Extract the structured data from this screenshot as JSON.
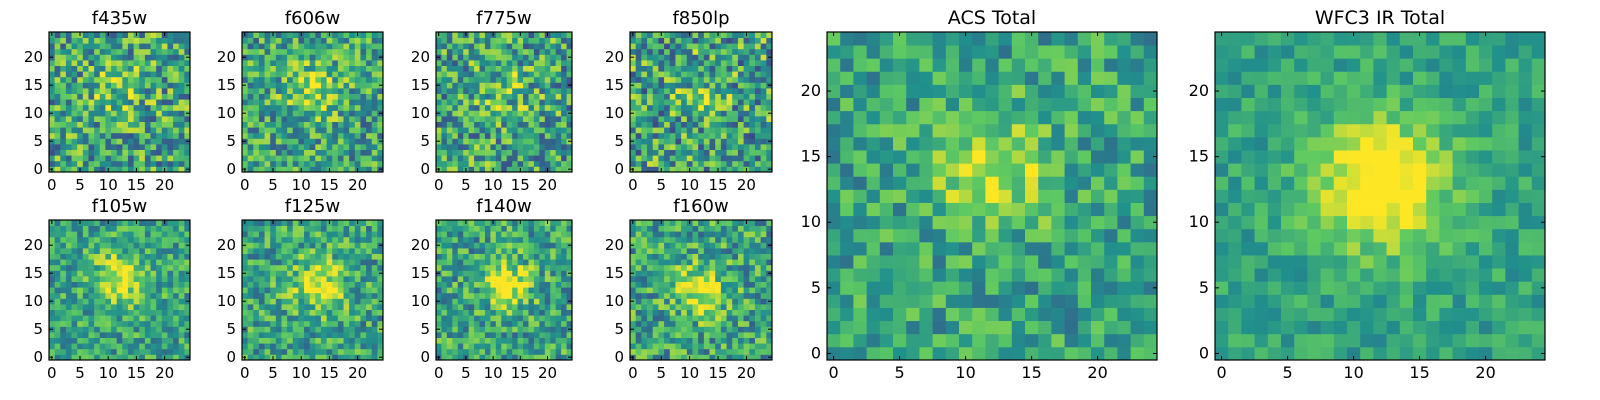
{
  "figure": {
    "colormap": [
      "#440154",
      "#3b528b",
      "#21918c",
      "#5ec962",
      "#fde725"
    ]
  },
  "chart_data": [
    {
      "type": "heatmap",
      "title": "f435w",
      "grid_size": 25,
      "xticks": [
        "0",
        "5",
        "10",
        "15",
        "20"
      ],
      "yticks": [
        "0",
        "5",
        "10",
        "15",
        "20"
      ],
      "xlim": [
        -0.5,
        24.5
      ],
      "ylim": [
        -0.5,
        24.5
      ],
      "peak": [
        12,
        14
      ],
      "peak_strength": 0.18,
      "spread": 3.5,
      "noise": 0.34,
      "grid": false
    },
    {
      "type": "heatmap",
      "title": "f606w",
      "grid_size": 25,
      "xticks": [
        "0",
        "5",
        "10",
        "15",
        "20"
      ],
      "yticks": [
        "0",
        "5",
        "10",
        "15",
        "20"
      ],
      "xlim": [
        -0.5,
        24.5
      ],
      "ylim": [
        -0.5,
        24.5
      ],
      "peak": [
        12,
        14
      ],
      "peak_strength": 0.3,
      "spread": 3.5,
      "noise": 0.3,
      "grid": false
    },
    {
      "type": "heatmap",
      "title": "f775w",
      "grid_size": 25,
      "xticks": [
        "0",
        "5",
        "10",
        "15",
        "20"
      ],
      "yticks": [
        "0",
        "5",
        "10",
        "15",
        "20"
      ],
      "xlim": [
        -0.5,
        24.5
      ],
      "ylim": [
        -0.5,
        24.5
      ],
      "peak": [
        12,
        14
      ],
      "peak_strength": 0.15,
      "spread": 3.5,
      "noise": 0.34,
      "grid": false
    },
    {
      "type": "heatmap",
      "title": "f850lp",
      "grid_size": 25,
      "xticks": [
        "0",
        "5",
        "10",
        "15",
        "20"
      ],
      "yticks": [
        "0",
        "5",
        "10",
        "15",
        "20"
      ],
      "xlim": [
        -0.5,
        24.5
      ],
      "ylim": [
        -0.5,
        24.5
      ],
      "peak": [
        12,
        14
      ],
      "peak_strength": 0.12,
      "spread": 3.5,
      "noise": 0.36,
      "grid": false
    },
    {
      "type": "heatmap",
      "title": "f105w",
      "grid_size": 25,
      "xticks": [
        "0",
        "5",
        "10",
        "15",
        "20"
      ],
      "yticks": [
        "0",
        "5",
        "10",
        "15",
        "20"
      ],
      "xlim": [
        -0.5,
        24.5
      ],
      "ylim": [
        -0.5,
        24.5
      ],
      "peak": [
        12,
        14
      ],
      "peak_strength": 0.4,
      "spread": 3.2,
      "noise": 0.24,
      "grid": false
    },
    {
      "type": "heatmap",
      "title": "f125w",
      "grid_size": 25,
      "xticks": [
        "0",
        "5",
        "10",
        "15",
        "20"
      ],
      "yticks": [
        "0",
        "5",
        "10",
        "15",
        "20"
      ],
      "xlim": [
        -0.5,
        24.5
      ],
      "ylim": [
        -0.5,
        24.5
      ],
      "peak": [
        13,
        13
      ],
      "peak_strength": 0.35,
      "spread": 3.4,
      "noise": 0.26,
      "grid": false
    },
    {
      "type": "heatmap",
      "title": "f140w",
      "grid_size": 25,
      "xticks": [
        "0",
        "5",
        "10",
        "15",
        "20"
      ],
      "yticks": [
        "0",
        "5",
        "10",
        "15",
        "20"
      ],
      "xlim": [
        -0.5,
        24.5
      ],
      "ylim": [
        -0.5,
        24.5
      ],
      "peak": [
        13,
        13
      ],
      "peak_strength": 0.4,
      "spread": 3.0,
      "noise": 0.27,
      "grid": false
    },
    {
      "type": "heatmap",
      "title": "f160w",
      "grid_size": 25,
      "xticks": [
        "0",
        "5",
        "10",
        "15",
        "20"
      ],
      "yticks": [
        "0",
        "5",
        "10",
        "15",
        "20"
      ],
      "xlim": [
        -0.5,
        24.5
      ],
      "ylim": [
        -0.5,
        24.5
      ],
      "peak": [
        12,
        12
      ],
      "peak_strength": 0.42,
      "spread": 3.2,
      "noise": 0.28,
      "grid": false
    },
    {
      "type": "heatmap",
      "title": "ACS Total",
      "grid_size": 25,
      "xticks": [
        "0",
        "5",
        "10",
        "15",
        "20"
      ],
      "yticks": [
        "0",
        "5",
        "10",
        "15",
        "20"
      ],
      "xlim": [
        -0.5,
        24.5
      ],
      "ylim": [
        -0.5,
        24.5
      ],
      "peak": [
        12,
        14
      ],
      "peak_strength": 0.38,
      "spread": 3.0,
      "noise": 0.22,
      "grid": false
    },
    {
      "type": "heatmap",
      "title": "WFC3 IR Total",
      "grid_size": 25,
      "xticks": [
        "0",
        "5",
        "10",
        "15",
        "20"
      ],
      "yticks": [
        "0",
        "5",
        "10",
        "15",
        "20"
      ],
      "xlim": [
        -0.5,
        24.5
      ],
      "ylim": [
        -0.5,
        24.5
      ],
      "peak": [
        12,
        13
      ],
      "peak_strength": 0.58,
      "spread": 3.4,
      "noise": 0.14,
      "grid": false
    }
  ]
}
